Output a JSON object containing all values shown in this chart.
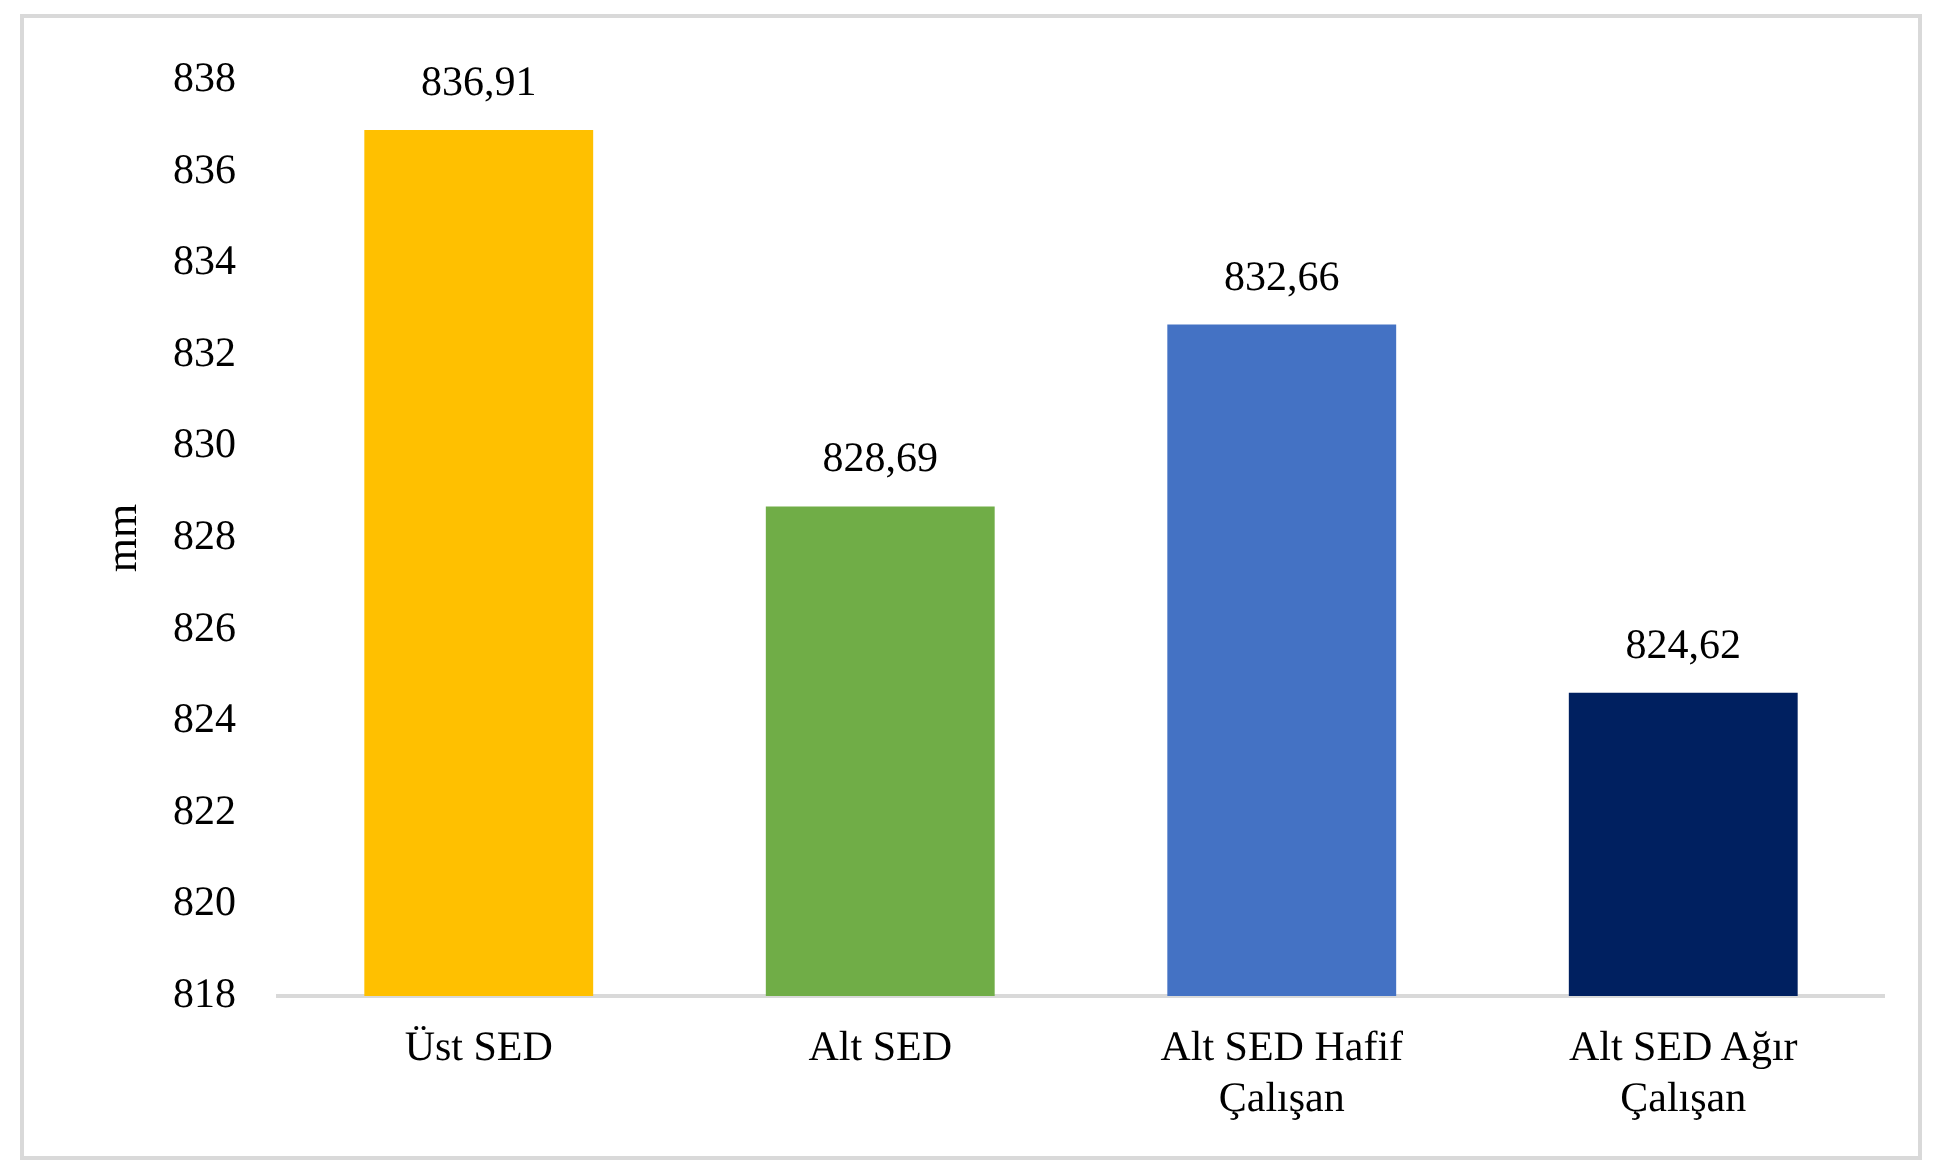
{
  "chart_data": {
    "type": "bar",
    "categories": [
      "Üst SED",
      "Alt SED",
      "Alt SED Hafif Çalışan",
      "Alt SED Ağır Çalışan"
    ],
    "values": [
      836.91,
      828.69,
      832.66,
      824.62
    ],
    "value_labels": [
      "836,91",
      "828,69",
      "832,66",
      "824,62"
    ],
    "colors": [
      "#ffc000",
      "#70ad47",
      "#4472c4",
      "#002060"
    ],
    "ylabel": "mm",
    "ylim": [
      818,
      838
    ],
    "yticks": [
      818,
      820,
      822,
      824,
      826,
      828,
      830,
      832,
      834,
      836,
      838
    ]
  }
}
